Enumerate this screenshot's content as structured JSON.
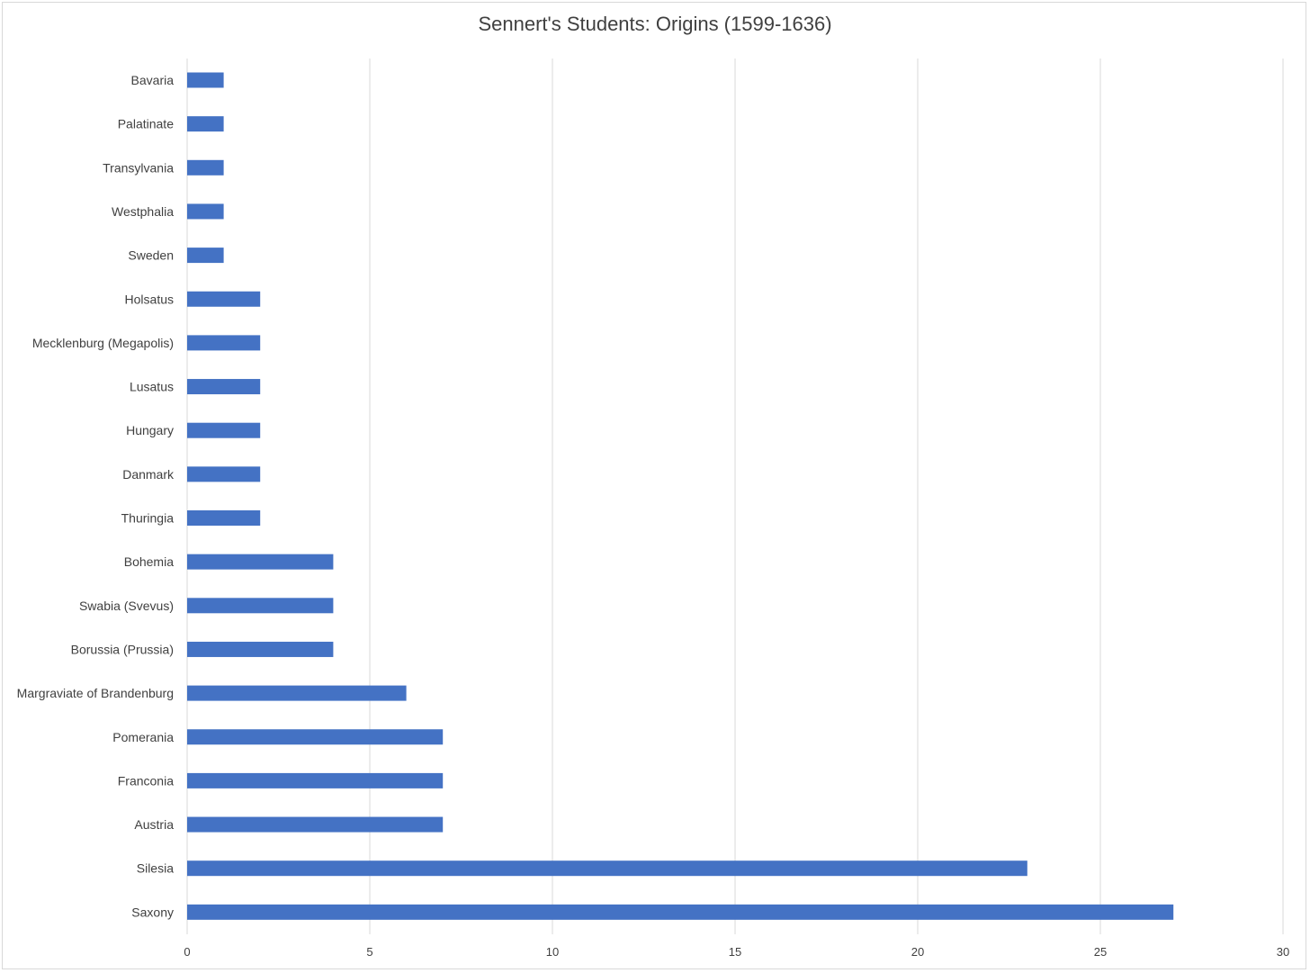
{
  "chart_data": {
    "type": "bar",
    "orientation": "horizontal",
    "title": "Sennert's Students: Origins (1599-1636)",
    "xlabel": "",
    "ylabel": "",
    "categories": [
      "Bavaria",
      "Palatinate",
      "Transylvania",
      "Westphalia",
      "Sweden",
      "Holsatus",
      "Mecklenburg (Megapolis)",
      "Lusatus",
      "Hungary",
      "Danmark",
      "Thuringia",
      "Bohemia",
      "Swabia (Svevus)",
      "Borussia (Prussia)",
      "Margraviate of Brandenburg",
      "Pomerania",
      "Franconia",
      "Austria",
      "Silesia",
      "Saxony"
    ],
    "values": [
      1,
      1,
      1,
      1,
      1,
      2,
      2,
      2,
      2,
      2,
      2,
      4,
      4,
      4,
      6,
      7,
      7,
      7,
      23,
      27
    ],
    "xlim": [
      0,
      30
    ],
    "xticks": [
      0,
      5,
      10,
      15,
      20,
      25,
      30
    ],
    "grid": "vertical",
    "legend": "none",
    "bar_color": "#4472c4",
    "grid_color": "#d9d9d9"
  }
}
